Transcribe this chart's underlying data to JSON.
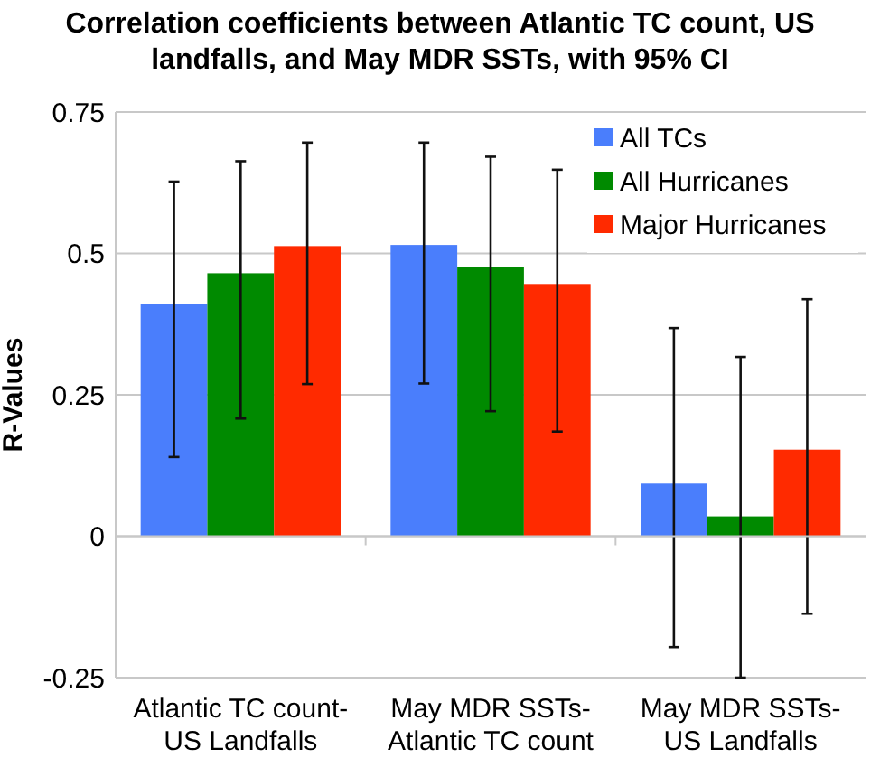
{
  "chart_data": {
    "type": "bar",
    "title": "Correlation coefficients between Atlantic TC count, US landfalls, and May MDR SSTs, with 95% CI",
    "ylabel": "R-Values",
    "categories": [
      "Atlantic TC count- US Landfalls",
      "May MDR SSTs- Atlantic TC count",
      "May MDR SSTs- US Landfalls"
    ],
    "series": [
      {
        "name": "All TCs",
        "color": "#4a7efc",
        "values": [
          0.41,
          0.515,
          0.093
        ],
        "errors": [
          [
            0.14,
            0.627
          ],
          [
            0.27,
            0.696
          ],
          [
            -0.196,
            0.368
          ]
        ]
      },
      {
        "name": "All Hurricanes",
        "color": "#008a00",
        "values": [
          0.465,
          0.476,
          0.035
        ],
        "errors": [
          [
            0.208,
            0.663
          ],
          [
            0.221,
            0.671
          ],
          [
            -0.25,
            0.317
          ]
        ]
      },
      {
        "name": "Major Hurricanes",
        "color": "#ff2a00",
        "values": [
          0.513,
          0.446,
          0.153
        ],
        "errors": [
          [
            0.269,
            0.696
          ],
          [
            0.185,
            0.648
          ],
          [
            -0.137,
            0.419
          ]
        ]
      }
    ],
    "ylim": [
      -0.25,
      0.75
    ],
    "yticks": [
      -0.25,
      0,
      0.25,
      0.5,
      0.75
    ],
    "grid": "y",
    "legend": "top right"
  }
}
